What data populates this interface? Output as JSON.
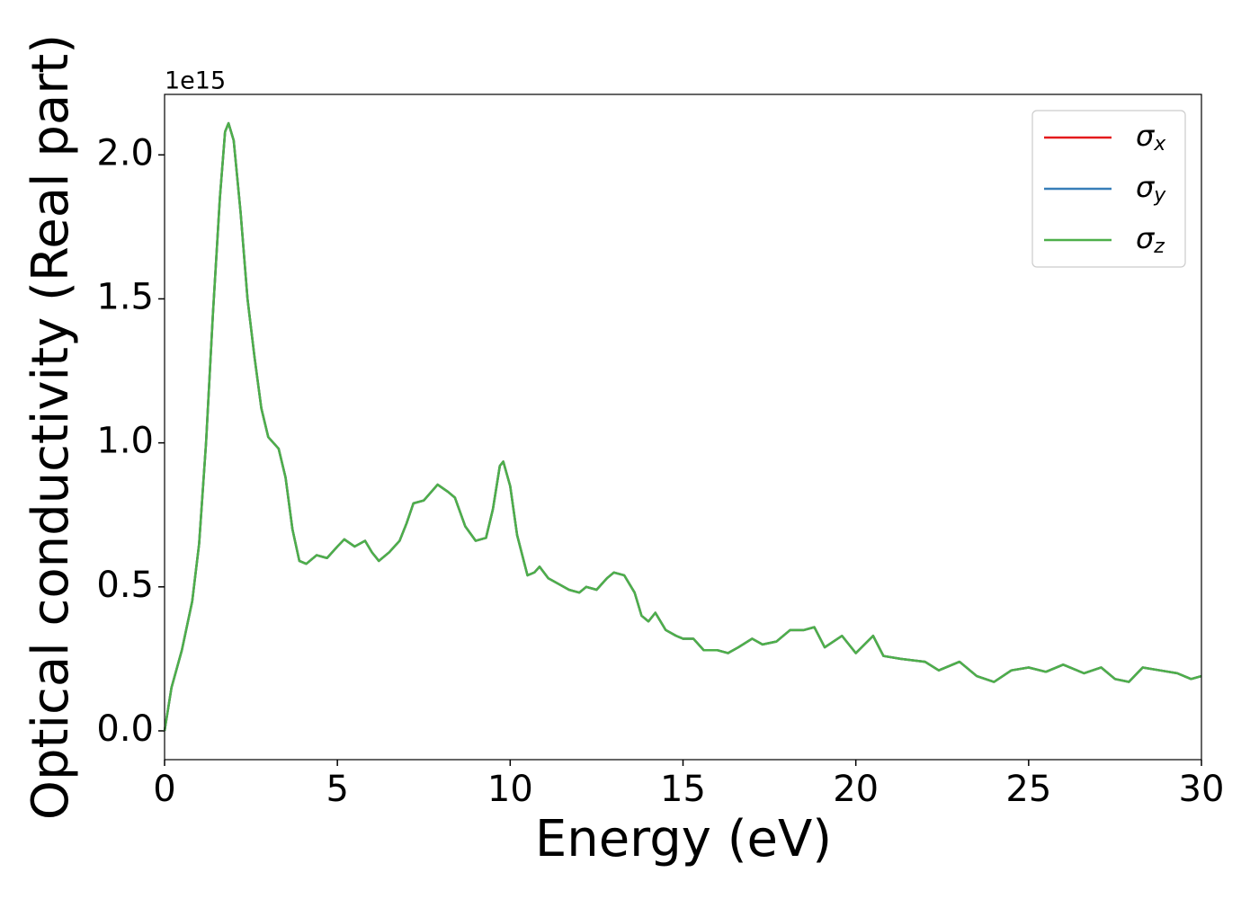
{
  "chart_data": {
    "type": "line",
    "xlabel": "Energy (eV)",
    "ylabel": "Optical conductivity (Real part)",
    "y_offset_label": "1e15",
    "x": [
      0,
      0.2,
      0.5,
      0.8,
      1.0,
      1.2,
      1.4,
      1.6,
      1.75,
      1.85,
      2.0,
      2.2,
      2.4,
      2.6,
      2.8,
      3.0,
      3.3,
      3.5,
      3.7,
      3.9,
      4.1,
      4.4,
      4.7,
      5.0,
      5.2,
      5.5,
      5.8,
      6.0,
      6.2,
      6.5,
      6.8,
      7.0,
      7.2,
      7.5,
      7.9,
      8.2,
      8.4,
      8.7,
      9.0,
      9.3,
      9.5,
      9.7,
      9.8,
      10.0,
      10.2,
      10.5,
      10.7,
      10.85,
      11.1,
      11.4,
      11.7,
      12.0,
      12.2,
      12.5,
      12.8,
      13.0,
      13.3,
      13.6,
      13.8,
      14.0,
      14.2,
      14.5,
      14.8,
      15.0,
      15.3,
      15.6,
      16.0,
      16.3,
      16.6,
      17.0,
      17.3,
      17.7,
      18.1,
      18.5,
      18.8,
      19.1,
      19.6,
      20.0,
      20.5,
      20.8,
      21.3,
      22.0,
      22.4,
      23.0,
      23.5,
      24.0,
      24.5,
      25.0,
      25.5,
      26.0,
      26.6,
      27.1,
      27.5,
      27.9,
      28.3,
      28.8,
      29.3,
      29.7,
      30.0
    ],
    "series": [
      {
        "name": "σx",
        "color": "#e41a1c",
        "values": [
          0,
          0.15,
          0.28,
          0.45,
          0.65,
          1.0,
          1.45,
          1.85,
          2.08,
          2.11,
          2.05,
          1.8,
          1.5,
          1.3,
          1.12,
          1.02,
          0.98,
          0.88,
          0.7,
          0.59,
          0.58,
          0.61,
          0.6,
          0.64,
          0.665,
          0.64,
          0.66,
          0.62,
          0.59,
          0.62,
          0.66,
          0.72,
          0.79,
          0.8,
          0.855,
          0.83,
          0.81,
          0.71,
          0.66,
          0.67,
          0.77,
          0.92,
          0.935,
          0.85,
          0.68,
          0.54,
          0.55,
          0.57,
          0.53,
          0.51,
          0.49,
          0.48,
          0.5,
          0.49,
          0.53,
          0.55,
          0.54,
          0.48,
          0.4,
          0.38,
          0.41,
          0.35,
          0.33,
          0.32,
          0.32,
          0.28,
          0.28,
          0.27,
          0.29,
          0.32,
          0.3,
          0.31,
          0.35,
          0.35,
          0.36,
          0.29,
          0.33,
          0.27,
          0.33,
          0.26,
          0.25,
          0.24,
          0.21,
          0.24,
          0.19,
          0.17,
          0.21,
          0.22,
          0.205,
          0.23,
          0.2,
          0.22,
          0.18,
          0.17,
          0.22,
          0.21,
          0.2,
          0.18,
          0.19
        ]
      },
      {
        "name": "σy",
        "color": "#377eb8",
        "values": [
          0,
          0.15,
          0.28,
          0.45,
          0.65,
          1.0,
          1.45,
          1.85,
          2.08,
          2.11,
          2.05,
          1.8,
          1.5,
          1.3,
          1.12,
          1.02,
          0.98,
          0.88,
          0.7,
          0.59,
          0.58,
          0.61,
          0.6,
          0.64,
          0.665,
          0.64,
          0.66,
          0.62,
          0.59,
          0.62,
          0.66,
          0.72,
          0.79,
          0.8,
          0.855,
          0.83,
          0.81,
          0.71,
          0.66,
          0.67,
          0.77,
          0.92,
          0.935,
          0.85,
          0.68,
          0.54,
          0.55,
          0.57,
          0.53,
          0.51,
          0.49,
          0.48,
          0.5,
          0.49,
          0.53,
          0.55,
          0.54,
          0.48,
          0.4,
          0.38,
          0.41,
          0.35,
          0.33,
          0.32,
          0.32,
          0.28,
          0.28,
          0.27,
          0.29,
          0.32,
          0.3,
          0.31,
          0.35,
          0.35,
          0.36,
          0.29,
          0.33,
          0.27,
          0.33,
          0.26,
          0.25,
          0.24,
          0.21,
          0.24,
          0.19,
          0.17,
          0.21,
          0.22,
          0.205,
          0.23,
          0.2,
          0.22,
          0.18,
          0.17,
          0.22,
          0.21,
          0.2,
          0.18,
          0.19
        ]
      },
      {
        "name": "σz",
        "color": "#4daf4a",
        "values": [
          0,
          0.15,
          0.28,
          0.45,
          0.65,
          1.0,
          1.45,
          1.85,
          2.08,
          2.11,
          2.05,
          1.8,
          1.5,
          1.3,
          1.12,
          1.02,
          0.98,
          0.88,
          0.7,
          0.59,
          0.58,
          0.61,
          0.6,
          0.64,
          0.665,
          0.64,
          0.66,
          0.62,
          0.59,
          0.62,
          0.66,
          0.72,
          0.79,
          0.8,
          0.855,
          0.83,
          0.81,
          0.71,
          0.66,
          0.67,
          0.77,
          0.92,
          0.935,
          0.85,
          0.68,
          0.54,
          0.55,
          0.57,
          0.53,
          0.51,
          0.49,
          0.48,
          0.5,
          0.49,
          0.53,
          0.55,
          0.54,
          0.48,
          0.4,
          0.38,
          0.41,
          0.35,
          0.33,
          0.32,
          0.32,
          0.28,
          0.28,
          0.27,
          0.29,
          0.32,
          0.3,
          0.31,
          0.35,
          0.35,
          0.36,
          0.29,
          0.33,
          0.27,
          0.33,
          0.26,
          0.25,
          0.24,
          0.21,
          0.24,
          0.19,
          0.17,
          0.21,
          0.22,
          0.205,
          0.23,
          0.2,
          0.22,
          0.18,
          0.17,
          0.22,
          0.21,
          0.2,
          0.18,
          0.19
        ]
      }
    ],
    "xlim": [
      0,
      30
    ],
    "xticks": [
      0,
      5,
      10,
      15,
      20,
      25,
      30
    ],
    "ylim": [
      -0.1,
      2.21
    ],
    "yticks": [
      {
        "value": 0,
        "label": "0.0"
      },
      0.5,
      {
        "value": 1,
        "label": "1.0"
      },
      1.5,
      {
        "value": 2,
        "label": "2.0"
      }
    ],
    "grid": false,
    "legend": "upper right"
  }
}
